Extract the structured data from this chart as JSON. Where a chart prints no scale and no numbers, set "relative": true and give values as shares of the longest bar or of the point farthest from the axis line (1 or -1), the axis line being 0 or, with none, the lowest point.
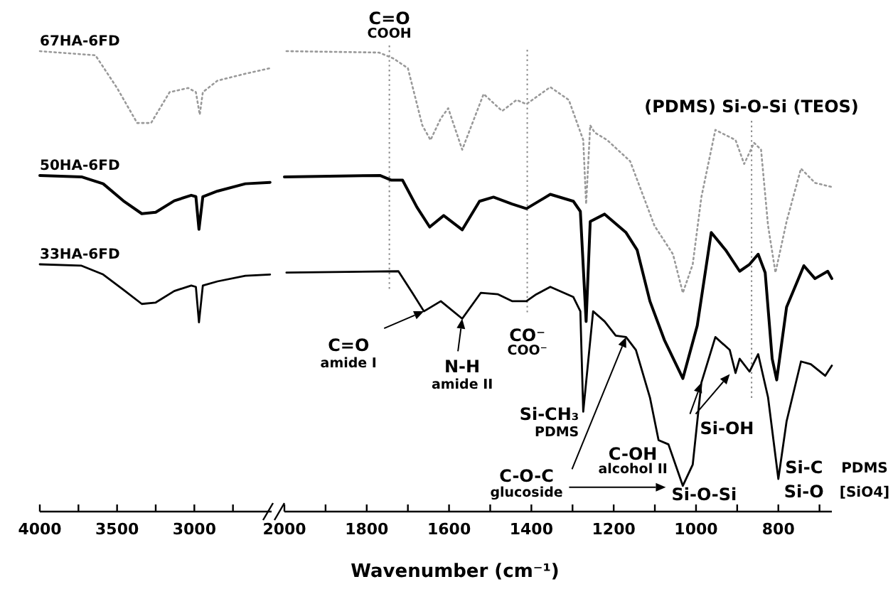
{
  "chart_data": [
    {
      "type": "line",
      "relative": true,
      "xlim": [
        4000,
        2500
      ],
      "xticks": [
        4000,
        {
          "value": 3750,
          "label": null
        },
        3500,
        {
          "value": 3250,
          "label": null
        },
        3000,
        {
          "value": 2750,
          "label": null
        }
      ],
      "series": [
        {
          "name": "67HA-6FD",
          "color": "#999999",
          "line_style": "dotted",
          "x": [
            4000,
            3640,
            3500,
            3370,
            3280,
            3160,
            3040,
            2990,
            2965,
            2945,
            2850,
            2670,
            2510
          ],
          "values": [
            1.0,
            0.991,
            0.92,
            0.844,
            0.844,
            0.911,
            0.92,
            0.911,
            0.862,
            0.911,
            0.936,
            0.951,
            0.963
          ]
        },
        {
          "name": "50HA-6FD",
          "color": "#000000",
          "line_style": "solid",
          "x": [
            4000,
            3730,
            3590,
            3460,
            3340,
            3250,
            3130,
            3020,
            2990,
            2970,
            2945,
            2850,
            2670,
            2510
          ],
          "values": [
            0.73,
            0.727,
            0.712,
            0.675,
            0.647,
            0.65,
            0.675,
            0.687,
            0.684,
            0.613,
            0.684,
            0.696,
            0.712,
            0.715
          ]
        },
        {
          "name": "33HA-6FD",
          "color": "#000000",
          "line_style": "solid",
          "x": [
            4000,
            3730,
            3590,
            3460,
            3340,
            3250,
            3130,
            3020,
            2990,
            2970,
            2945,
            2850,
            2670,
            2510
          ],
          "values": [
            0.537,
            0.534,
            0.515,
            0.482,
            0.451,
            0.454,
            0.479,
            0.491,
            0.488,
            0.411,
            0.491,
            0.5,
            0.512,
            0.515
          ]
        }
      ]
    },
    {
      "type": "line",
      "relative": true,
      "xlabel": "Wavenumber (cm⁻¹)",
      "xlim": [
        2000,
        670
      ],
      "xticks": [
        2000,
        {
          "value": 1900,
          "label": null
        },
        1800,
        {
          "value": 1700,
          "label": null
        },
        1600,
        {
          "value": 1500,
          "label": null
        },
        1400,
        {
          "value": 1300,
          "label": null
        },
        1200,
        {
          "value": 1100,
          "label": null
        },
        1000,
        {
          "value": 900,
          "label": null
        },
        800,
        {
          "value": 700,
          "label": null
        }
      ],
      "series": [
        {
          "color": "#999999",
          "line_style": "dotted",
          "x": [
            1995,
            1770,
            1735,
            1700,
            1665,
            1645,
            1620,
            1602,
            1568,
            1516,
            1471,
            1436,
            1412,
            1354,
            1309,
            1274,
            1267,
            1257,
            1246,
            1216,
            1160,
            1101,
            1056,
            1032,
            1008,
            987,
            953,
            904,
            883,
            859,
            842,
            825,
            807,
            780,
            745,
            711,
            670
          ],
          "values": [
            1.0,
            0.997,
            0.984,
            0.963,
            0.839,
            0.807,
            0.854,
            0.876,
            0.786,
            0.907,
            0.87,
            0.894,
            0.885,
            0.922,
            0.894,
            0.807,
            0.668,
            0.839,
            0.823,
            0.807,
            0.761,
            0.621,
            0.559,
            0.475,
            0.537,
            0.683,
            0.829,
            0.807,
            0.755,
            0.801,
            0.786,
            0.621,
            0.519,
            0.63,
            0.745,
            0.714,
            0.705
          ]
        },
        {
          "color": "#000000",
          "line_style": "solid",
          "x": [
            2000,
            1768,
            1741,
            1713,
            1678,
            1647,
            1613,
            1568,
            1526,
            1492,
            1447,
            1412,
            1354,
            1298,
            1281,
            1267,
            1257,
            1222,
            1170,
            1143,
            1112,
            1077,
            1032,
            997,
            963,
            928,
            894,
            870,
            849,
            832,
            815,
            804,
            780,
            738,
            711,
            680,
            670
          ],
          "values": [
            0.727,
            0.73,
            0.72,
            0.72,
            0.661,
            0.618,
            0.643,
            0.612,
            0.674,
            0.683,
            0.668,
            0.658,
            0.689,
            0.674,
            0.652,
            0.413,
            0.63,
            0.646,
            0.606,
            0.568,
            0.457,
            0.373,
            0.289,
            0.404,
            0.606,
            0.568,
            0.522,
            0.537,
            0.559,
            0.519,
            0.332,
            0.286,
            0.444,
            0.534,
            0.506,
            0.522,
            0.506
          ]
        },
        {
          "color": "#000000",
          "line_style": "solid",
          "x": [
            1995,
            1723,
            1689,
            1661,
            1620,
            1568,
            1523,
            1481,
            1447,
            1412,
            1388,
            1354,
            1298,
            1281,
            1274,
            1250,
            1222,
            1195,
            1170,
            1146,
            1112,
            1091,
            1067,
            1032,
            1008,
            987,
            953,
            918,
            904,
            894,
            870,
            849,
            825,
            800,
            780,
            745,
            721,
            686,
            670
          ],
          "values": [
            0.519,
            0.522,
            0.475,
            0.435,
            0.457,
            0.419,
            0.475,
            0.472,
            0.457,
            0.457,
            0.472,
            0.488,
            0.466,
            0.435,
            0.217,
            0.435,
            0.413,
            0.382,
            0.379,
            0.351,
            0.248,
            0.155,
            0.146,
            0.056,
            0.102,
            0.28,
            0.379,
            0.351,
            0.301,
            0.332,
            0.304,
            0.342,
            0.248,
            0.071,
            0.196,
            0.326,
            0.32,
            0.295,
            0.317
          ]
        }
      ],
      "ref_lines": [
        {
          "axis": "x",
          "value": 1745,
          "label": "C=O\nCOOH",
          "color": "#888888",
          "line_style": "dotted"
        },
        {
          "axis": "x",
          "value": 1410,
          "label": "CO⁻\nCOO⁻",
          "color": "#888888",
          "line_style": "dotted"
        },
        {
          "axis": "x",
          "value": 865,
          "label": "(PDMS) Si-O-Si (TEOS)",
          "color": "#888888",
          "line_style": "dotted"
        }
      ],
      "annotations": [
        {
          "text": "C=O\namide I",
          "x": 1661,
          "y": 0.435
        },
        {
          "text": "N-H\namide II",
          "x": 1568,
          "y": 0.419
        },
        {
          "text": "Si-CH₃\nPDMS",
          "x": 1274,
          "y": 0.217
        },
        {
          "text": "C-O-C\nglucoside",
          "x": 1170,
          "y": 0.379
        },
        {
          "text": "Si-O-Si",
          "x": 1032,
          "y": 0.056
        },
        {
          "text": "C-OH\nalcohol II",
          "x": 1067,
          "y": 0.146
        },
        {
          "text": "Si-OH",
          "x": 987,
          "y": 0.28
        },
        {
          "text": "Si-C\nSi-O",
          "x": 800,
          "y": 0.071
        },
        "PDMS\n[SiO4]"
      ]
    }
  ]
}
